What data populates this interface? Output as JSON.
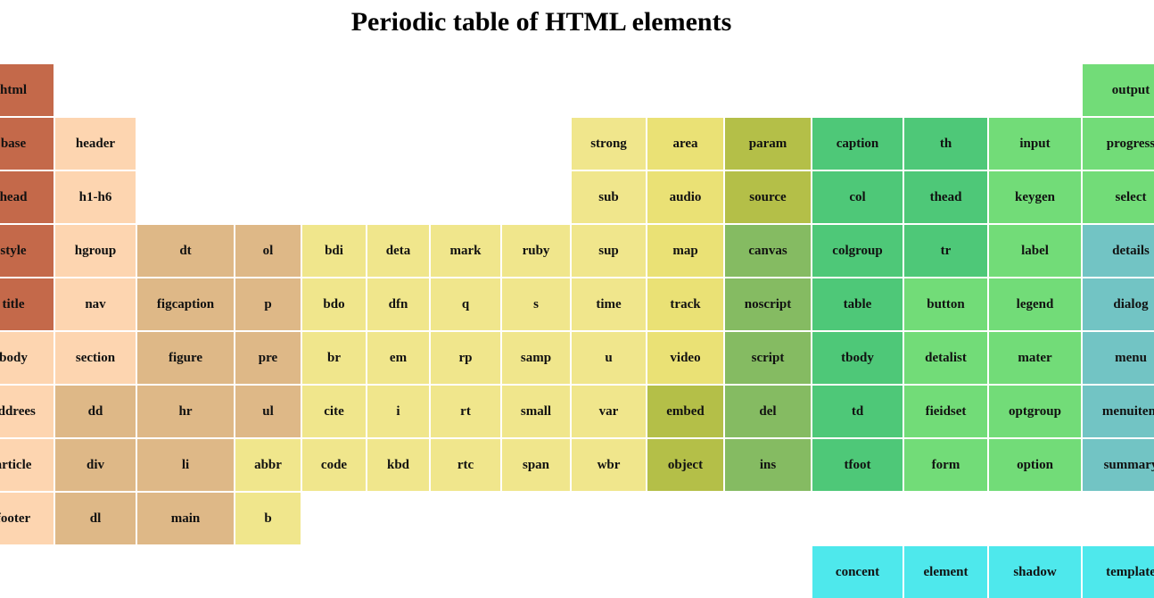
{
  "title": "Periodic table of HTML elements",
  "table": {
    "rows": [
      [
        "html",
        null,
        null,
        null,
        null,
        null,
        null,
        null,
        null,
        null,
        null,
        null,
        null,
        null,
        "output"
      ],
      [
        "base",
        "header",
        null,
        null,
        null,
        null,
        null,
        null,
        "strong",
        "area",
        "param",
        "caption",
        "th",
        "input",
        "progress"
      ],
      [
        "head",
        "h1-h6",
        null,
        null,
        null,
        null,
        null,
        null,
        "sub",
        "audio",
        "source",
        "col",
        "thead",
        "keygen",
        "select"
      ],
      [
        "style",
        "hgroup",
        "dt",
        "ol",
        "bdi",
        "deta",
        "mark",
        "ruby",
        "sup",
        "map",
        "canvas",
        "colgroup",
        "tr",
        "label",
        "details"
      ],
      [
        "title",
        "nav",
        "figcaption",
        "p",
        "bdo",
        "dfn",
        "q",
        "s",
        "time",
        "track",
        "noscript",
        "table",
        "button",
        "legend",
        "dialog"
      ],
      [
        "body",
        "section",
        "figure",
        "pre",
        "br",
        "em",
        "rp",
        "samp",
        "u",
        "video",
        "script",
        "tbody",
        "detalist",
        "mater",
        "menu"
      ],
      [
        "addrees",
        "dd",
        "hr",
        "ul",
        "cite",
        "i",
        "rt",
        "small",
        "var",
        "embed",
        "del",
        "td",
        "fieidset",
        "optgroup",
        "menuitem"
      ],
      [
        "article",
        "div",
        "li",
        "abbr",
        "code",
        "kbd",
        "rtc",
        "span",
        "wbr",
        "object",
        "ins",
        "tfoot",
        "form",
        "option",
        "summary"
      ],
      [
        "footer",
        "dl",
        "main",
        "b",
        null,
        null,
        null,
        null,
        null,
        null,
        null,
        null,
        null,
        null,
        null
      ],
      [
        null,
        null,
        null,
        null,
        null,
        null,
        null,
        null,
        null,
        null,
        null,
        "concent",
        "element",
        "shadow",
        "template"
      ]
    ]
  }
}
